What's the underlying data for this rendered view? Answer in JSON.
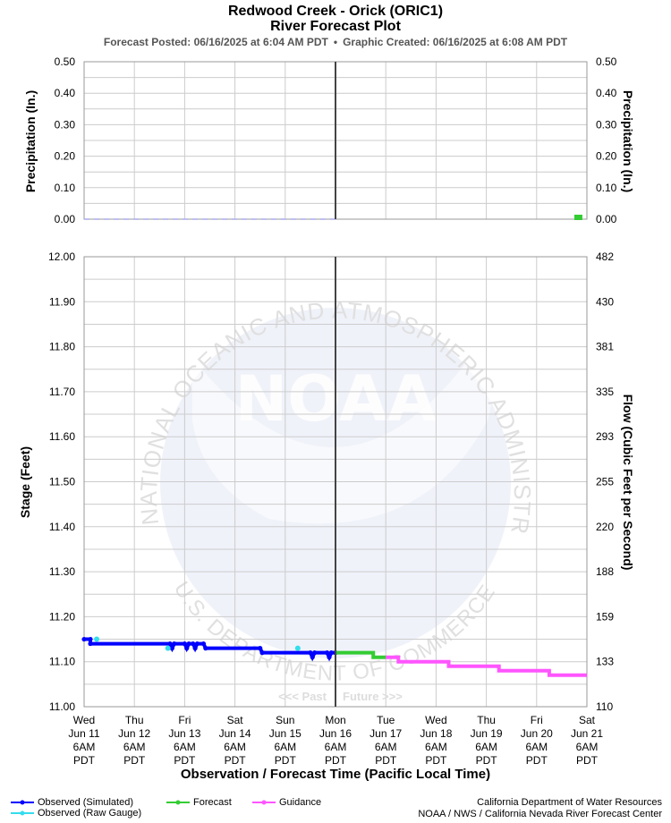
{
  "header": {
    "title": "Redwood Creek - Orick (ORIC1)",
    "subtitle": "River Forecast Plot",
    "posted": "Forecast Posted: 06/16/2025 at 6:04 AM PDT",
    "bullet": "•",
    "created": "Graphic Created: 06/16/2025 at 6:08 AM PDT"
  },
  "colors": {
    "observed_simulated": "#0000ff",
    "observed_raw": "#33ddee",
    "forecast": "#33cc33",
    "guidance": "#ff55ff",
    "grid": "#cccccc",
    "now_line": "#444444",
    "precip_obs": "#aaaaee",
    "precip_fcst": "#33cc33",
    "watermark": "#e4e8f6"
  },
  "watermark": {
    "logo": "NOAA",
    "ring_top": "NATIONAL OCEANIC AND ATMOSPHERIC ADMINISTRATION",
    "ring_bottom": "U.S. DEPARTMENT OF COMMERCE"
  },
  "markers": {
    "past": "<<< Past",
    "future": "Future >>>"
  },
  "legend": {
    "observed_simulated": "Observed (Simulated)",
    "observed_raw": "Observed (Raw Gauge)",
    "forecast": "Forecast",
    "guidance": "Guidance"
  },
  "credits": {
    "line1": "California Department of Water Resources",
    "line2": "NOAA / NWS / California Nevada River Forecast Center"
  },
  "chart_data": [
    {
      "type": "bar",
      "name": "precipitation",
      "ylabel": "Precipitation (In.)",
      "ylabel_right": "Precipitation (In.)",
      "ylim": [
        0,
        0.5
      ],
      "yticks": [
        0.0,
        0.1,
        0.2,
        0.3,
        0.4,
        0.5
      ],
      "ytick_labels": [
        "0.00",
        "0.10",
        "0.20",
        "0.30",
        "0.40",
        "0.50"
      ],
      "grid": true,
      "observed": {
        "x_range": [
          "2025-06-11 06:00",
          "2025-06-16 06:00"
        ],
        "value": 0.0
      },
      "forecast": [
        {
          "x": "2025-06-21 00:00",
          "value": 0.01
        }
      ]
    },
    {
      "type": "line",
      "name": "stage",
      "xlabel": "Observation / Forecast Time (Pacific Local Time)",
      "ylabel": "Stage (Feet)",
      "ylabel_right": "Flow (Cubic Feet per Second)",
      "ylim": [
        11.0,
        12.0
      ],
      "yticks": [
        11.0,
        11.1,
        11.2,
        11.3,
        11.4,
        11.5,
        11.6,
        11.7,
        11.8,
        11.9,
        12.0
      ],
      "ytick_labels": [
        "11.00",
        "11.10",
        "11.20",
        "11.30",
        "11.40",
        "11.50",
        "11.60",
        "11.70",
        "11.80",
        "11.90",
        "12.00"
      ],
      "flow_tick_labels": [
        "110",
        "133",
        "159",
        "188",
        "220",
        "255",
        "293",
        "335",
        "381",
        "430",
        "482"
      ],
      "grid": true,
      "now": "2025-06-16 06:00",
      "x_ticks": [
        {
          "day": "Wed",
          "date": "Jun 11",
          "time": "6AM",
          "tz": "PDT"
        },
        {
          "day": "Thu",
          "date": "Jun 12",
          "time": "6AM",
          "tz": "PDT"
        },
        {
          "day": "Fri",
          "date": "Jun 13",
          "time": "6AM",
          "tz": "PDT"
        },
        {
          "day": "Sat",
          "date": "Jun 14",
          "time": "6AM",
          "tz": "PDT"
        },
        {
          "day": "Sun",
          "date": "Jun 15",
          "time": "6AM",
          "tz": "PDT"
        },
        {
          "day": "Mon",
          "date": "Jun 16",
          "time": "6AM",
          "tz": "PDT"
        },
        {
          "day": "Tue",
          "date": "Jun 17",
          "time": "6AM",
          "tz": "PDT"
        },
        {
          "day": "Wed",
          "date": "Jun 18",
          "time": "6AM",
          "tz": "PDT"
        },
        {
          "day": "Thu",
          "date": "Jun 19",
          "time": "6AM",
          "tz": "PDT"
        },
        {
          "day": "Fri",
          "date": "Jun 20",
          "time": "6AM",
          "tz": "PDT"
        },
        {
          "day": "Sat",
          "date": "Jun 21",
          "time": "6AM",
          "tz": "PDT"
        }
      ],
      "series": [
        {
          "name": "Observed (Simulated)",
          "points": [
            [
              "2025-06-11 06:00",
              11.15
            ],
            [
              "2025-06-11 09:00",
              11.15
            ],
            [
              "2025-06-11 09:00",
              11.14
            ],
            [
              "2025-06-12 23:00",
              11.14
            ],
            [
              "2025-06-13 00:00",
              11.13
            ],
            [
              "2025-06-13 01:00",
              11.14
            ],
            [
              "2025-06-13 06:00",
              11.14
            ],
            [
              "2025-06-13 07:00",
              11.13
            ],
            [
              "2025-06-13 08:00",
              11.14
            ],
            [
              "2025-06-13 10:00",
              11.14
            ],
            [
              "2025-06-13 11:00",
              11.13
            ],
            [
              "2025-06-13 12:00",
              11.14
            ],
            [
              "2025-06-13 15:00",
              11.14
            ],
            [
              "2025-06-13 16:00",
              11.13
            ],
            [
              "2025-06-14 18:00",
              11.13
            ],
            [
              "2025-06-14 19:00",
              11.12
            ],
            [
              "2025-06-15 18:00",
              11.12
            ],
            [
              "2025-06-15 19:00",
              11.11
            ],
            [
              "2025-06-15 20:00",
              11.12
            ],
            [
              "2025-06-16 02:00",
              11.12
            ],
            [
              "2025-06-16 03:00",
              11.11
            ],
            [
              "2025-06-16 04:00",
              11.12
            ],
            [
              "2025-06-16 06:00",
              11.12
            ]
          ]
        },
        {
          "name": "Observed (Raw Gauge)",
          "points": [
            [
              "2025-06-11 12:00",
              11.15
            ],
            [
              "2025-06-12 22:00",
              11.13
            ],
            [
              "2025-06-15 12:00",
              11.13
            ]
          ]
        },
        {
          "name": "Forecast",
          "points": [
            [
              "2025-06-16 06:00",
              11.12
            ],
            [
              "2025-06-17 00:00",
              11.12
            ],
            [
              "2025-06-17 00:00",
              11.11
            ],
            [
              "2025-06-17 06:00",
              11.11
            ]
          ]
        },
        {
          "name": "Guidance",
          "points": [
            [
              "2025-06-17 06:00",
              11.11
            ],
            [
              "2025-06-17 12:00",
              11.11
            ],
            [
              "2025-06-17 12:00",
              11.1
            ],
            [
              "2025-06-18 12:00",
              11.1
            ],
            [
              "2025-06-18 12:00",
              11.09
            ],
            [
              "2025-06-19 12:00",
              11.09
            ],
            [
              "2025-06-19 12:00",
              11.08
            ],
            [
              "2025-06-20 12:00",
              11.08
            ],
            [
              "2025-06-20 12:00",
              11.07
            ],
            [
              "2025-06-21 06:00",
              11.07
            ]
          ]
        }
      ]
    }
  ]
}
